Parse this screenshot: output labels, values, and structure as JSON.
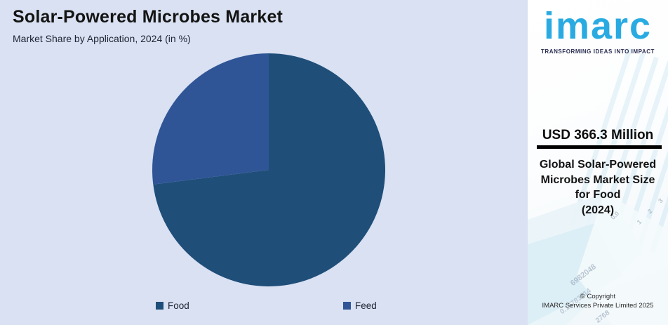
{
  "header": {
    "title": "Solar-Powered Microbes Market",
    "subtitle": "Market Share by Application, 2024 (in %)"
  },
  "chart_data": {
    "type": "pie",
    "title": "Solar-Powered Microbes Market",
    "subtitle": "Market Share by Application, 2024 (in %)",
    "categories": [
      "Food",
      "Feed"
    ],
    "values": [
      73,
      27
    ],
    "unit": "%",
    "colors": [
      "#1F4E79",
      "#2F5597"
    ],
    "start_angle_deg": 0,
    "direction": "clockwise",
    "legend_position": "bottom",
    "data_labels_shown": false
  },
  "legend": {
    "items": [
      {
        "label": "Food",
        "color": "#1F4E79"
      },
      {
        "label": "Feed",
        "color": "#2F5597"
      }
    ]
  },
  "sidebar": {
    "logo": {
      "text": "imarc",
      "tagline": "TRANSFORMING IDEAS INTO IMPACT",
      "color": "#29ABE2"
    },
    "highlight": {
      "value": "USD 366.3 Million",
      "description_lines": [
        "Global Solar-Powered",
        "Microbes Market Size",
        "for Food",
        "(2024)"
      ]
    },
    "copyright_lines": [
      "© Copyright",
      "IMARC Services Private Limited 2025"
    ],
    "watermark_numbers": {
      "axis_zero": "0.0",
      "axis_ticks": "1 2 3 4",
      "num_a": "6982048",
      "num_b": "0.15783714",
      "num_c": "2768"
    }
  },
  "colors": {
    "chart_background": "#D9E1F2",
    "slice_food": "#1F4E79",
    "slice_feed": "#2F5597",
    "logo_blue": "#29ABE2",
    "tagline_navy": "#2B2E52",
    "divider_black": "#000000"
  }
}
